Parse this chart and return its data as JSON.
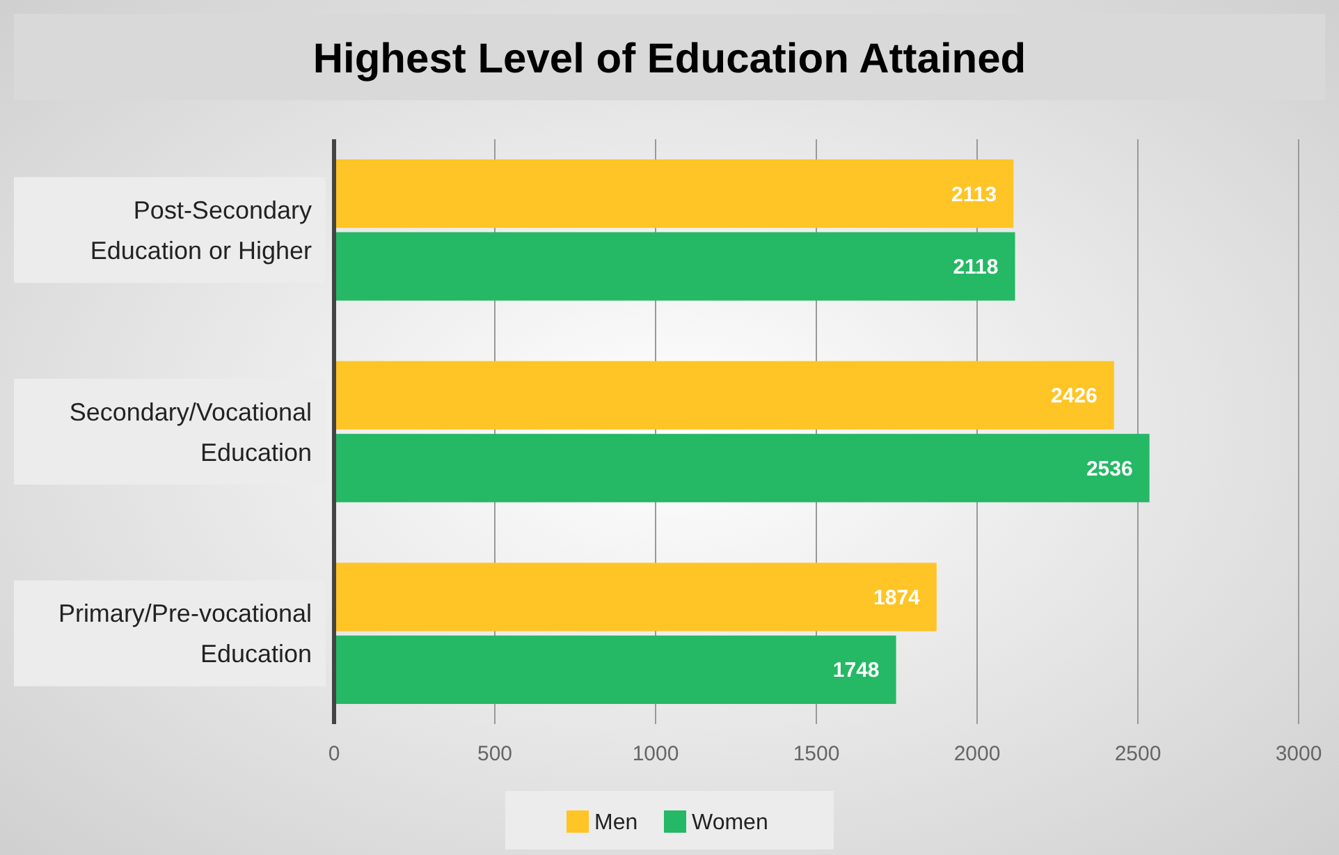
{
  "chart_data": {
    "type": "bar",
    "orientation": "horizontal",
    "title": "Highest Level of Education Attained",
    "categories": [
      "Post-Secondary Education or Higher",
      "Secondary/Vocational Education",
      "Primary/Pre-vocational Education"
    ],
    "series": [
      {
        "name": "Men",
        "color": "#ffc425",
        "values": [
          2113,
          2426,
          1874
        ]
      },
      {
        "name": "Women",
        "color": "#25b865",
        "values": [
          2118,
          2536,
          1748
        ]
      }
    ],
    "xlim": [
      0,
      3000
    ],
    "xticks": [
      0,
      500,
      1000,
      1500,
      2000,
      2500,
      3000
    ],
    "grid": "x",
    "legend": "bottom",
    "data_labels": true
  }
}
